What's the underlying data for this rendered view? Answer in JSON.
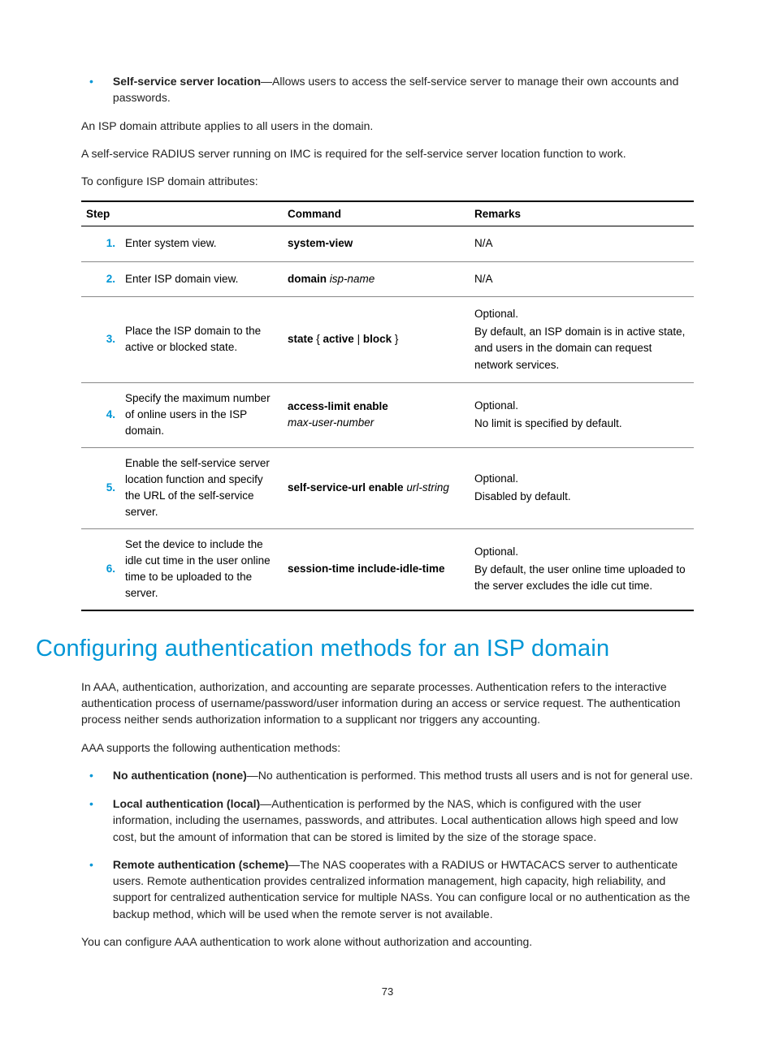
{
  "top_bullet": {
    "label": "Self-service server location",
    "text": "—Allows users to access the self-service server to manage their own accounts and passwords."
  },
  "para1": "An ISP domain attribute applies to all users in the domain.",
  "para2": "A self-service RADIUS server running on IMC is required for the self-service server location function to work.",
  "para3": "To configure ISP domain attributes:",
  "table": {
    "headers": {
      "step": "Step",
      "command": "Command",
      "remarks": "Remarks"
    },
    "rows": [
      {
        "num": "1.",
        "desc": "Enter system view.",
        "cmd_bold": "system-view",
        "cmd_italic": "",
        "remarks_lines": [
          "N/A"
        ]
      },
      {
        "num": "2.",
        "desc": "Enter ISP domain view.",
        "cmd_bold": "domain",
        "cmd_italic": " isp-name",
        "remarks_lines": [
          "N/A"
        ]
      },
      {
        "num": "3.",
        "desc": "Place the ISP domain to the active or blocked state.",
        "cmd_html": "<span class=\"bold\">state</span> { <span class=\"bold\">active</span> | <span class=\"bold\">block</span> }",
        "remarks_lines": [
          "Optional.",
          "By default, an ISP domain is in active state, and users in the domain can request network services."
        ]
      },
      {
        "num": "4.",
        "desc": "Specify the maximum number of online users in the ISP domain.",
        "cmd_html": "<span class=\"bold\">access-limit enable</span><br><span class=\"italic\">max-user-number</span>",
        "remarks_lines": [
          "Optional.",
          "No limit is specified by default."
        ]
      },
      {
        "num": "5.",
        "desc": "Enable the self-service server location function and specify the URL of the self-service server.",
        "cmd_bold": "self-service-url enable",
        "cmd_italic": " url-string",
        "remarks_lines": [
          "Optional.",
          "Disabled by default."
        ]
      },
      {
        "num": "6.",
        "desc": "Set the device to include the idle cut time in the user online time to be uploaded to the server.",
        "cmd_bold": "session-time include-idle-time",
        "cmd_italic": "",
        "remarks_lines": [
          "Optional.",
          "By default, the user online time uploaded to the server excludes the idle cut time."
        ]
      }
    ]
  },
  "heading": "Configuring authentication methods for an ISP domain",
  "body1": "In AAA, authentication, authorization, and accounting are separate processes. Authentication refers to the interactive authentication process of username/password/user information during an access or service request. The authentication process neither sends authorization information to a supplicant nor triggers any accounting.",
  "body2": "AAA supports the following authentication methods:",
  "methods": [
    {
      "label": "No authentication (none)",
      "text": "—No authentication is performed. This method trusts all users and is not for general use."
    },
    {
      "label": "Local authentication (local)",
      "text": "—Authentication is performed by the NAS, which is configured with the user information, including the usernames, passwords, and attributes. Local authentication allows high speed and low cost, but the amount of information that can be stored is limited by the size of the storage space."
    },
    {
      "label": "Remote authentication (scheme)",
      "text": "—The NAS cooperates with a RADIUS or HWTACACS server to authenticate users. Remote authentication provides centralized information management, high capacity, high reliability, and support for centralized authentication service for multiple NASs. You can configure local or no authentication as the backup method, which will be used when the remote server is not available."
    }
  ],
  "body3": "You can configure AAA authentication to work alone without authorization and accounting.",
  "page_num": "73"
}
